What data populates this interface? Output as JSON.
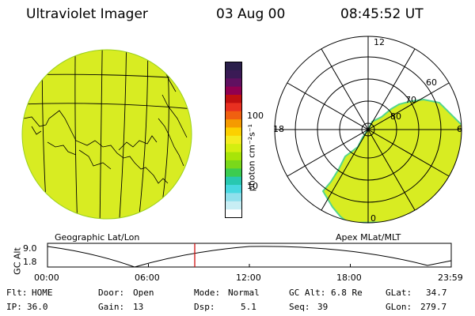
{
  "header": {
    "title": "Ultraviolet Imager",
    "date": "03 Aug 00",
    "time": "08:45:52 UT"
  },
  "geo_panel": {
    "label": "Geographic Lat/Lon"
  },
  "colorbar": {
    "unit_label": "photon cm⁻²s⁻¹",
    "ticks": [
      "100",
      "10"
    ],
    "colors": [
      "#2a1f4a",
      "#3a1a55",
      "#601060",
      "#900050",
      "#c01010",
      "#e83020",
      "#f06010",
      "#f59a00",
      "#fcd000",
      "#f4ec20",
      "#d4ee10",
      "#a8e408",
      "#7ad81a",
      "#3ccc50",
      "#28c8b0",
      "#48d8e0",
      "#90e0ec",
      "#c8eef4",
      "#ffffff"
    ]
  },
  "polar_panel": {
    "label": "Apex MLat/MLT",
    "mlt_labels": [
      "12",
      "18",
      "6",
      "0"
    ],
    "lat_labels": [
      "80",
      "70",
      "60"
    ]
  },
  "altitude_plot": {
    "ylabel": "GC Alt",
    "yticks": [
      "9.0",
      "1.8"
    ],
    "xticks": [
      "00:00",
      "06:00",
      "12:00",
      "18:00",
      "23:59"
    ],
    "marker_time": "08:45:52"
  },
  "footer": {
    "flt_label": "Flt:",
    "flt_value": "HOME",
    "ip_label": "IP:",
    "ip_value": "36.0",
    "door_label": "Door:",
    "door_value": "Open",
    "gain_label": "Gain:",
    "gain_value": "13",
    "mode_label": "Mode:",
    "mode_value": "Normal",
    "dsp_label": "Dsp:",
    "dsp_value": "5.1",
    "gcalt_label": "GC Alt:",
    "gcalt_value": "6.8 Re",
    "seq_label": "Seq:",
    "seq_value": "39",
    "glat_label": "GLat:",
    "glat_value": "34.7",
    "glon_label": "GLon:",
    "glon_value": "279.7"
  },
  "colors": {
    "aurora_fill": "#d8ec22",
    "aurora_edge": "#54d68c",
    "marker": "#d01010"
  }
}
